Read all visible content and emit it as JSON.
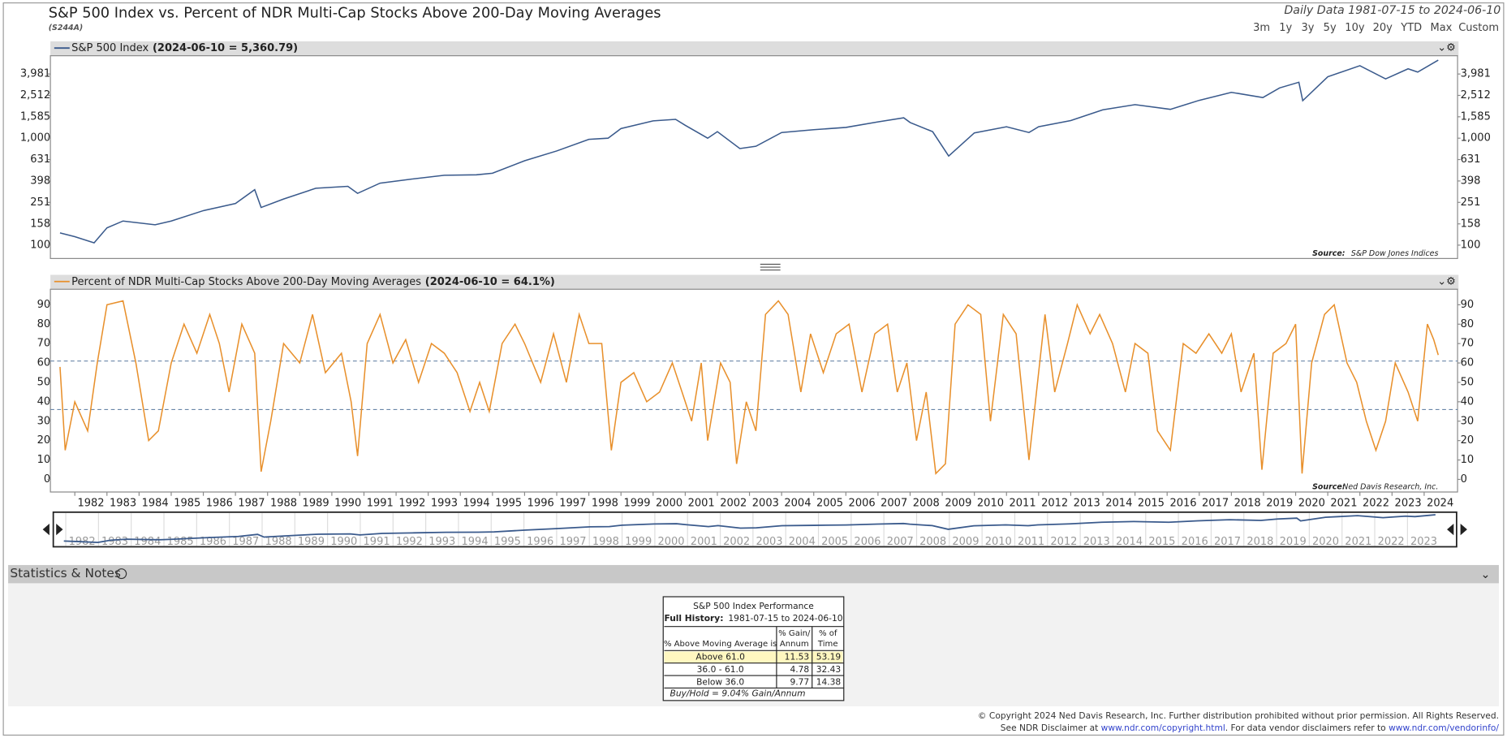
{
  "header": {
    "title": "S&P 500 Index vs. Percent of NDR Multi-Cap Stocks Above 200-Day Moving Averages",
    "code": "(S244A)",
    "range": "Daily Data 1981-07-15 to 2024-06-10",
    "buttons": [
      "3m",
      "1y",
      "3y",
      "5y",
      "10y",
      "20y",
      "YTD",
      "Max",
      "Custom"
    ]
  },
  "chart_data": [
    {
      "type": "line",
      "log_scale": true,
      "latest": "(2024-06-10 = 5,360.79)",
      "source_label": "Source:",
      "source": "S&P Dow Jones Indices",
      "xlim": [
        1981.24,
        2025.04
      ],
      "ylim": [
        75,
        5900
      ],
      "yticks": [
        100,
        158,
        251,
        398,
        631,
        {
          "value": 1000,
          "label": "1,000"
        },
        {
          "value": 1585,
          "label": "1,585"
        },
        {
          "value": 2512,
          "label": "2,512"
        },
        {
          "value": 3981,
          "label": "3,981"
        }
      ],
      "x": [
        1981.54,
        1982.0,
        1982.6,
        1983.0,
        1983.5,
        1984.5,
        1985.0,
        1986.0,
        1987.0,
        1987.6,
        1987.8,
        1988.5,
        1989.5,
        1990.5,
        1990.8,
        1991.5,
        1992.5,
        1993.5,
        1994.5,
        1995.0,
        1996.0,
        1997.0,
        1998.0,
        1998.6,
        1999.0,
        2000.0,
        2000.7,
        2001.0,
        2001.7,
        2002.0,
        2002.7,
        2003.2,
        2004.0,
        2005.0,
        2006.0,
        2007.0,
        2007.8,
        2008.0,
        2008.7,
        2009.2,
        2010.0,
        2011.0,
        2011.7,
        2012.0,
        2013.0,
        2014.0,
        2015.0,
        2016.1,
        2017.0,
        2018.0,
        2018.98,
        2019.5,
        2020.1,
        2020.22,
        2021.0,
        2022.0,
        2022.8,
        2023.5,
        2023.8,
        2024.44
      ],
      "series": [
        {
          "name": "S&P 500 Index",
          "color": "#3a5a8c",
          "values": [
            130,
            120,
            105,
            145,
            168,
            155,
            168,
            210,
            245,
            330,
            225,
            270,
            340,
            355,
            305,
            380,
            415,
            450,
            455,
            470,
            615,
            760,
            975,
            1000,
            1230,
            1450,
            1500,
            1320,
            1000,
            1150,
            800,
            840,
            1130,
            1200,
            1260,
            1420,
            1550,
            1400,
            1150,
            680,
            1120,
            1280,
            1130,
            1280,
            1460,
            1840,
            2060,
            1860,
            2260,
            2680,
            2400,
            2950,
            3330,
            2240,
            3750,
            4760,
            3580,
            4450,
            4150,
            5360.79
          ]
        }
      ]
    },
    {
      "type": "line",
      "latest": "(2024-06-10 = 64.1%)",
      "source_label": "Source:",
      "source": "Ned Davis Research, Inc.",
      "xlim": [
        1981.24,
        2025.04
      ],
      "ylim": [
        -6.5,
        98
      ],
      "xticks": [
        1982,
        1983,
        1984,
        1985,
        1986,
        1987,
        1988,
        1989,
        1990,
        1991,
        1992,
        1993,
        1994,
        1995,
        1996,
        1997,
        1998,
        1999,
        2000,
        2001,
        2002,
        2003,
        2004,
        2005,
        2006,
        2007,
        2008,
        2009,
        2010,
        2011,
        2012,
        2013,
        2014,
        2015,
        2016,
        2017,
        2018,
        2019,
        2020,
        2021,
        2022,
        2023,
        2024
      ],
      "yticks": [
        0,
        10,
        20,
        30,
        40,
        50,
        60,
        70,
        80,
        90
      ],
      "reference_lines": [
        61,
        36
      ],
      "reference_color": "#6a86a8",
      "x": [
        1981.54,
        1981.7,
        1982.0,
        1982.4,
        1982.7,
        1983.0,
        1983.5,
        1983.9,
        1984.3,
        1984.6,
        1985.0,
        1985.4,
        1985.8,
        1986.2,
        1986.5,
        1986.8,
        1987.2,
        1987.6,
        1987.8,
        1988.1,
        1988.5,
        1989.0,
        1989.4,
        1989.8,
        1990.3,
        1990.6,
        1990.8,
        1991.1,
        1991.5,
        1991.9,
        1992.3,
        1992.7,
        1993.1,
        1993.5,
        1993.9,
        1994.3,
        1994.6,
        1994.9,
        1995.3,
        1995.7,
        1996.0,
        1996.5,
        1996.9,
        1997.3,
        1997.7,
        1998.0,
        1998.4,
        1998.7,
        1999.0,
        1999.4,
        1999.8,
        2000.2,
        2000.6,
        2000.9,
        2001.2,
        2001.5,
        2001.7,
        2002.1,
        2002.4,
        2002.6,
        2002.9,
        2003.2,
        2003.5,
        2003.9,
        2004.2,
        2004.6,
        2004.9,
        2005.3,
        2005.7,
        2006.1,
        2006.5,
        2006.9,
        2007.3,
        2007.6,
        2007.9,
        2008.2,
        2008.5,
        2008.8,
        2009.1,
        2009.4,
        2009.8,
        2010.2,
        2010.5,
        2010.9,
        2011.3,
        2011.7,
        2011.9,
        2012.2,
        2012.5,
        2012.9,
        2013.2,
        2013.6,
        2013.9,
        2014.3,
        2014.7,
        2015.0,
        2015.4,
        2015.7,
        2016.1,
        2016.5,
        2016.9,
        2017.3,
        2017.7,
        2018.0,
        2018.3,
        2018.7,
        2018.95,
        2019.3,
        2019.7,
        2020.0,
        2020.2,
        2020.5,
        2020.9,
        2021.2,
        2021.6,
        2021.9,
        2022.2,
        2022.5,
        2022.8,
        2023.1,
        2023.5,
        2023.8,
        2024.1,
        2024.3,
        2024.44
      ],
      "series": [
        {
          "name": "Percent of NDR Multi-Cap Stocks Above 200-Day Moving Averages",
          "color": "#e8902c",
          "values": [
            58,
            15,
            40,
            25,
            60,
            90,
            92,
            60,
            20,
            25,
            60,
            80,
            65,
            85,
            70,
            45,
            80,
            65,
            4,
            30,
            70,
            60,
            85,
            55,
            65,
            40,
            12,
            70,
            85,
            60,
            72,
            50,
            70,
            65,
            55,
            35,
            50,
            35,
            70,
            80,
            70,
            50,
            75,
            50,
            85,
            70,
            70,
            15,
            50,
            55,
            40,
            45,
            60,
            45,
            30,
            60,
            20,
            60,
            50,
            8,
            40,
            25,
            85,
            92,
            85,
            45,
            75,
            55,
            75,
            80,
            45,
            75,
            80,
            45,
            60,
            20,
            45,
            3,
            8,
            80,
            90,
            85,
            30,
            85,
            75,
            10,
            40,
            85,
            45,
            70,
            90,
            75,
            85,
            70,
            45,
            70,
            65,
            25,
            15,
            70,
            65,
            75,
            65,
            75,
            45,
            65,
            5,
            65,
            70,
            80,
            3,
            60,
            85,
            90,
            60,
            50,
            30,
            15,
            30,
            60,
            45,
            30,
            80,
            72,
            64.1
          ]
        }
      ]
    }
  ],
  "navigator": {
    "years": [
      1982,
      1983,
      1984,
      1985,
      1986,
      1987,
      1988,
      1989,
      1990,
      1991,
      1992,
      1993,
      1994,
      1995,
      1996,
      1997,
      1998,
      1999,
      2000,
      2001,
      2002,
      2003,
      2004,
      2005,
      2006,
      2007,
      2008,
      2009,
      2010,
      2011,
      2012,
      2013,
      2014,
      2015,
      2016,
      2017,
      2018,
      2019,
      2020,
      2021,
      2022,
      2023
    ]
  },
  "stats": {
    "heading": "Statistics & Notes",
    "table": {
      "title": "S&P 500 Index Performance",
      "history_label": "Full History:",
      "history": "1981-07-15 to 2024-06-10",
      "columns": [
        [
          "% Above Moving Average is"
        ],
        [
          "% Gain/",
          "Annum"
        ],
        [
          "% of",
          "Time"
        ]
      ],
      "rows": [
        [
          "Above 61.0",
          "11.53",
          "53.19"
        ],
        [
          "36.0 - 61.0",
          "4.78",
          "32.43"
        ],
        [
          "Below 36.0",
          "9.77",
          "14.38"
        ]
      ],
      "note": "Buy/Hold = 9.04% Gain/Annum"
    }
  },
  "footer": {
    "copyright": "© Copyright 2024 Ned Davis Research, Inc. Further distribution prohibited without prior permission. All Rights Reserved.",
    "disclaimer": [
      "See NDR Disclaimer at ",
      "www.ndr.com/copyright.html",
      ". For data vendor disclaimers refer to ",
      "www.ndr.com/vendorinfo/"
    ]
  }
}
